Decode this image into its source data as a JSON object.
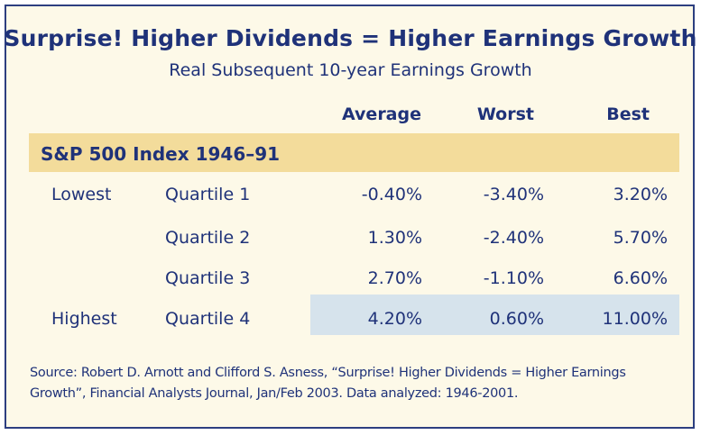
{
  "chart_data": {
    "type": "table",
    "title": "Surprise! Higher Dividends = Higher Earnings Growth",
    "subtitle": "Real Subsequent 10-year Earnings Growth",
    "columns": [
      "Average",
      "Worst",
      "Best"
    ],
    "section": "S&P 500 Index 1946–91",
    "rows": [
      {
        "group": "Lowest",
        "quartile": "Quartile 1",
        "average": "-0.40%",
        "worst": "-3.40%",
        "best": "3.20%"
      },
      {
        "group": "",
        "quartile": "Quartile 2",
        "average": "1.30%",
        "worst": "-2.40%",
        "best": "5.70%"
      },
      {
        "group": "",
        "quartile": "Quartile 3",
        "average": "2.70%",
        "worst": "-1.10%",
        "best": "6.60%"
      },
      {
        "group": "Highest",
        "quartile": "Quartile 4",
        "average": "4.20%",
        "worst": "0.60%",
        "best": "11.00%"
      }
    ],
    "source_line1": "Source: Robert D. Arnott and Clifford S. Asness, “Surprise! Higher Dividends = Higher Earnings",
    "source_line2": "Growth”, Financial Analysts Journal, Jan/Feb 2003. Data analyzed: 1946-2001."
  },
  "colors": {
    "text": "#1f3279",
    "border": "#2d3f80",
    "background": "#fdf9e8",
    "section_band": "#f3dc9b",
    "highlight_band": "#d6e3ec"
  }
}
